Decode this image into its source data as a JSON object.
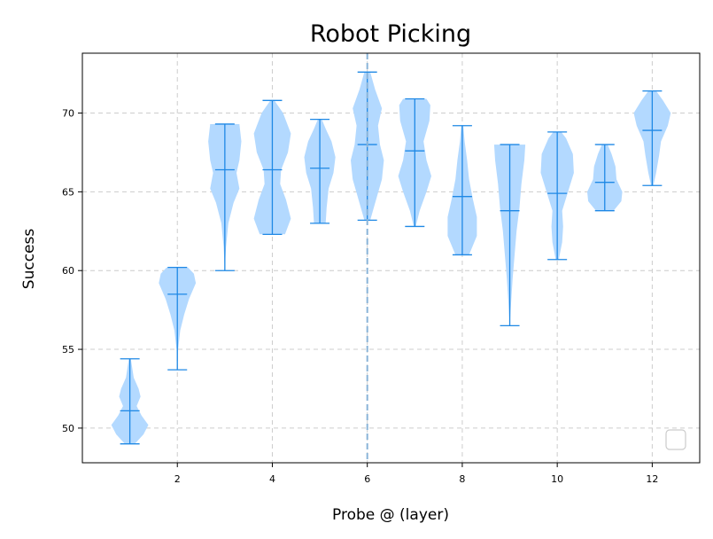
{
  "chart_data": {
    "type": "violin",
    "title": "Robot Picking",
    "xlabel": "Probe @ (layer)",
    "ylabel": "Success",
    "xlim": [
      0,
      13
    ],
    "ylim": [
      47.8,
      73.8
    ],
    "xticks": [
      2,
      4,
      6,
      8,
      10,
      12
    ],
    "yticks": [
      50,
      55,
      60,
      65,
      70
    ],
    "grid": true,
    "legend": "lower-right, empty",
    "reference_line_x": 6,
    "colors": {
      "violin_fill": "#b3d9ff",
      "violin_lines": "#1e88e5",
      "reference_line": "#8ab4d8",
      "grid": "#cccccc"
    },
    "violins": [
      {
        "x": 1,
        "min": 49.0,
        "mean": 51.1,
        "max": 54.4,
        "density": [
          [
            49.0,
            0.25
          ],
          [
            49.6,
            0.7
          ],
          [
            50.2,
            0.95
          ],
          [
            50.8,
            0.6
          ],
          [
            51.4,
            0.35
          ],
          [
            52.0,
            0.55
          ],
          [
            52.5,
            0.45
          ],
          [
            53.2,
            0.2
          ],
          [
            54.4,
            0.05
          ]
        ]
      },
      {
        "x": 2,
        "min": 53.7,
        "mean": 58.5,
        "max": 60.2,
        "density": [
          [
            53.7,
            0.0
          ],
          [
            55.0,
            0.04
          ],
          [
            56.2,
            0.15
          ],
          [
            57.2,
            0.35
          ],
          [
            58.2,
            0.6
          ],
          [
            59.2,
            0.95
          ],
          [
            59.8,
            0.85
          ],
          [
            60.2,
            0.55
          ]
        ]
      },
      {
        "x": 3,
        "min": 60.0,
        "mean": 66.4,
        "max": 69.3,
        "density": [
          [
            60.0,
            0.0
          ],
          [
            61.5,
            0.06
          ],
          [
            63.0,
            0.18
          ],
          [
            64.3,
            0.45
          ],
          [
            65.2,
            0.75
          ],
          [
            66.2,
            0.6
          ],
          [
            67.0,
            0.75
          ],
          [
            68.2,
            0.85
          ],
          [
            69.3,
            0.75
          ]
        ]
      },
      {
        "x": 4,
        "min": 62.3,
        "mean": 66.4,
        "max": 70.8,
        "density": [
          [
            62.3,
            0.65
          ],
          [
            63.3,
            0.95
          ],
          [
            64.5,
            0.7
          ],
          [
            65.5,
            0.4
          ],
          [
            66.4,
            0.45
          ],
          [
            67.5,
            0.8
          ],
          [
            68.7,
            0.95
          ],
          [
            70.0,
            0.55
          ],
          [
            70.8,
            0.1
          ]
        ]
      },
      {
        "x": 5,
        "min": 63.0,
        "mean": 66.5,
        "max": 69.6,
        "density": [
          [
            63.0,
            0.3
          ],
          [
            64.0,
            0.35
          ],
          [
            65.2,
            0.45
          ],
          [
            66.2,
            0.7
          ],
          [
            67.2,
            0.8
          ],
          [
            68.2,
            0.6
          ],
          [
            69.0,
            0.3
          ],
          [
            69.6,
            0.1
          ]
        ]
      },
      {
        "x": 6,
        "min": 63.2,
        "mean": 68.0,
        "max": 72.6,
        "density": [
          [
            63.2,
            0.15
          ],
          [
            64.5,
            0.45
          ],
          [
            65.8,
            0.75
          ],
          [
            67.0,
            0.85
          ],
          [
            68.0,
            0.65
          ],
          [
            69.2,
            0.55
          ],
          [
            70.3,
            0.75
          ],
          [
            71.5,
            0.4
          ],
          [
            72.6,
            0.15
          ]
        ]
      },
      {
        "x": 7,
        "min": 62.8,
        "mean": 67.6,
        "max": 70.9,
        "density": [
          [
            62.8,
            0.05
          ],
          [
            63.8,
            0.25
          ],
          [
            65.0,
            0.6
          ],
          [
            66.0,
            0.85
          ],
          [
            67.0,
            0.6
          ],
          [
            68.2,
            0.45
          ],
          [
            69.5,
            0.75
          ],
          [
            70.5,
            0.8
          ],
          [
            70.9,
            0.6
          ]
        ]
      },
      {
        "x": 8,
        "min": 61.0,
        "mean": 64.7,
        "max": 69.2,
        "density": [
          [
            61.0,
            0.35
          ],
          [
            62.2,
            0.75
          ],
          [
            63.4,
            0.75
          ],
          [
            64.5,
            0.55
          ],
          [
            65.8,
            0.35
          ],
          [
            67.0,
            0.25
          ],
          [
            68.2,
            0.12
          ],
          [
            69.2,
            0.05
          ]
        ]
      },
      {
        "x": 9,
        "min": 56.5,
        "mean": 63.8,
        "max": 68.0,
        "density": [
          [
            56.5,
            0.0
          ],
          [
            58.0,
            0.07
          ],
          [
            59.5,
            0.15
          ],
          [
            61.0,
            0.25
          ],
          [
            62.5,
            0.35
          ],
          [
            64.0,
            0.5
          ],
          [
            65.5,
            0.6
          ],
          [
            67.0,
            0.75
          ],
          [
            68.0,
            0.8
          ]
        ]
      },
      {
        "x": 10,
        "min": 60.7,
        "mean": 64.9,
        "max": 68.8,
        "density": [
          [
            60.7,
            0.08
          ],
          [
            61.8,
            0.25
          ],
          [
            62.8,
            0.3
          ],
          [
            63.8,
            0.25
          ],
          [
            65.0,
            0.55
          ],
          [
            66.2,
            0.85
          ],
          [
            67.4,
            0.8
          ],
          [
            68.4,
            0.45
          ],
          [
            68.8,
            0.2
          ]
        ]
      },
      {
        "x": 11,
        "min": 63.8,
        "mean": 65.6,
        "max": 68.0,
        "density": [
          [
            63.8,
            0.45
          ],
          [
            64.4,
            0.85
          ],
          [
            65.0,
            0.9
          ],
          [
            65.8,
            0.6
          ],
          [
            66.6,
            0.55
          ],
          [
            67.4,
            0.35
          ],
          [
            68.0,
            0.15
          ]
        ]
      },
      {
        "x": 12,
        "min": 65.4,
        "mean": 68.9,
        "max": 71.4,
        "density": [
          [
            65.4,
            0.06
          ],
          [
            66.2,
            0.2
          ],
          [
            67.3,
            0.35
          ],
          [
            68.2,
            0.45
          ],
          [
            69.2,
            0.8
          ],
          [
            70.0,
            0.95
          ],
          [
            70.8,
            0.55
          ],
          [
            71.4,
            0.2
          ]
        ]
      }
    ]
  }
}
